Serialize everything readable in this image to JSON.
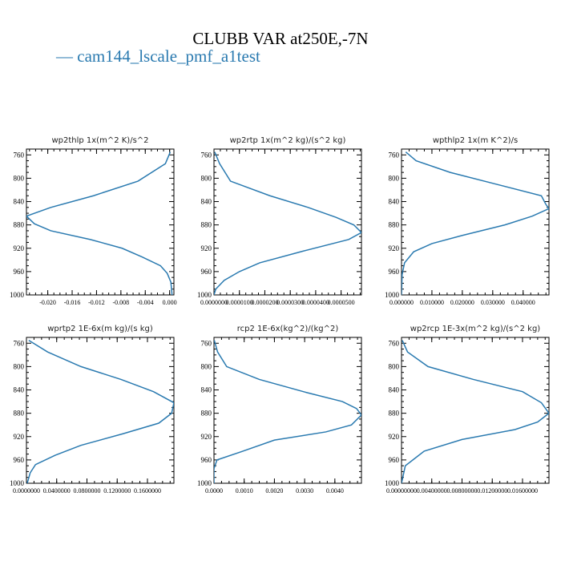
{
  "title": "CLUBB VAR at250E,-7N",
  "legend": "cam144_lscale_pmf_a1test",
  "legend_marker": "—",
  "colors": {
    "line": "#2a7ab0",
    "axis": "#000000"
  },
  "chart_data": [
    {
      "type": "line",
      "title": "wp2thlp   1x(m^2 K)/s^2",
      "xlim": [
        -0.0235,
        0.0007
      ],
      "ylim": [
        1000,
        750
      ],
      "y_ticks": [
        "760",
        "800",
        "840",
        "880",
        "920",
        "960",
        "1000"
      ],
      "x_ticks": [
        "-0.020",
        "-0.016",
        "-0.012",
        "-0.008",
        "-0.004",
        "0.000"
      ],
      "x_tick_values": [
        -0.02,
        -0.016,
        -0.012,
        -0.008,
        -0.004,
        0.0
      ],
      "series": [
        {
          "values": [
            {
              "x": 0.0001,
              "y": 755
            },
            {
              "x": -0.0007,
              "y": 775
            },
            {
              "x": -0.0052,
              "y": 805
            },
            {
              "x": -0.0125,
              "y": 830
            },
            {
              "x": -0.0195,
              "y": 850
            },
            {
              "x": -0.0235,
              "y": 865
            },
            {
              "x": -0.0222,
              "y": 878
            },
            {
              "x": -0.0195,
              "y": 890
            },
            {
              "x": -0.013,
              "y": 905
            },
            {
              "x": -0.0078,
              "y": 920
            },
            {
              "x": -0.0045,
              "y": 935
            },
            {
              "x": -0.0015,
              "y": 950
            },
            {
              "x": -0.0004,
              "y": 963
            },
            {
              "x": 0.0002,
              "y": 978
            },
            {
              "x": 0.0004,
              "y": 1000
            }
          ]
        }
      ]
    },
    {
      "type": "line",
      "title": "wp2rtp   1x(m^2 kg)/(s^2 kg)",
      "xlim": [
        0.0,
        5.8e-05
      ],
      "ylim": [
        1000,
        750
      ],
      "y_ticks": [
        "760",
        "800",
        "840",
        "880",
        "920",
        "960",
        "1000"
      ],
      "x_ticks": [
        "0.0000000",
        "0.0000100",
        "0.0000200",
        "0.0000300",
        "0.0000400",
        "0.0000500"
      ],
      "x_tick_values": [
        0.0,
        1e-05,
        2e-05,
        3e-05,
        4e-05,
        5e-05
      ],
      "series": [
        {
          "values": [
            {
              "x": 3e-07,
              "y": 755
            },
            {
              "x": 2.2e-06,
              "y": 775
            },
            {
              "x": 6.5e-06,
              "y": 805
            },
            {
              "x": 2.2e-05,
              "y": 830
            },
            {
              "x": 3.7e-05,
              "y": 850
            },
            {
              "x": 4.8e-05,
              "y": 867
            },
            {
              "x": 5.5e-05,
              "y": 880
            },
            {
              "x": 5.8e-05,
              "y": 893
            },
            {
              "x": 5.3e-05,
              "y": 905
            },
            {
              "x": 3.5e-05,
              "y": 925
            },
            {
              "x": 1.8e-05,
              "y": 945
            },
            {
              "x": 1e-05,
              "y": 960
            },
            {
              "x": 4e-06,
              "y": 975
            },
            {
              "x": 7e-07,
              "y": 990
            },
            {
              "x": 0.0,
              "y": 1000
            }
          ]
        }
      ]
    },
    {
      "type": "line",
      "title": "wpthlp2   1x(m K^2)/s",
      "xlim": [
        0.0,
        0.0485
      ],
      "ylim": [
        1000,
        750
      ],
      "y_ticks": [
        "760",
        "800",
        "840",
        "880",
        "920",
        "960",
        "1000"
      ],
      "x_ticks": [
        "0.000000",
        "0.010000",
        "0.020000",
        "0.030000",
        "0.040000"
      ],
      "x_tick_values": [
        0.0,
        0.01,
        0.02,
        0.03,
        0.04
      ],
      "series": [
        {
          "values": [
            {
              "x": 0.0014,
              "y": 755
            },
            {
              "x": 0.0048,
              "y": 770
            },
            {
              "x": 0.016,
              "y": 790
            },
            {
              "x": 0.031,
              "y": 810
            },
            {
              "x": 0.046,
              "y": 830
            },
            {
              "x": 0.0475,
              "y": 845
            },
            {
              "x": 0.0485,
              "y": 852
            },
            {
              "x": 0.043,
              "y": 865
            },
            {
              "x": 0.034,
              "y": 880
            },
            {
              "x": 0.02,
              "y": 898
            },
            {
              "x": 0.01,
              "y": 912
            },
            {
              "x": 0.004,
              "y": 926
            },
            {
              "x": 0.001,
              "y": 945
            },
            {
              "x": 0.0002,
              "y": 965
            },
            {
              "x": 0.0,
              "y": 1000
            }
          ]
        }
      ]
    },
    {
      "type": "line",
      "title": "wprtp2   1E-6x(m kg)/(s kg)",
      "xlim": [
        0.0,
        1.95e-07
      ],
      "ylim": [
        1000,
        750
      ],
      "y_ticks": [
        "760",
        "800",
        "840",
        "880",
        "920",
        "960",
        "1000"
      ],
      "x_ticks": [
        "0.0000000",
        "0.0400000",
        "0.0800000",
        "0.1200000",
        "0.1600000"
      ],
      "x_tick_values": [
        0.0,
        4e-08,
        8e-08,
        1.2e-07,
        1.6e-07
      ],
      "series": [
        {
          "values": [
            {
              "x": 3e-09,
              "y": 755
            },
            {
              "x": 2.8e-08,
              "y": 775
            },
            {
              "x": 7.2e-08,
              "y": 800
            },
            {
              "x": 1.25e-07,
              "y": 822
            },
            {
              "x": 1.68e-07,
              "y": 843
            },
            {
              "x": 1.95e-07,
              "y": 862
            },
            {
              "x": 1.92e-07,
              "y": 880
            },
            {
              "x": 1.75e-07,
              "y": 897
            },
            {
              "x": 1.28e-07,
              "y": 915
            },
            {
              "x": 7.2e-08,
              "y": 935
            },
            {
              "x": 3.8e-08,
              "y": 952
            },
            {
              "x": 1.2e-08,
              "y": 968
            },
            {
              "x": 5e-09,
              "y": 982
            },
            {
              "x": 1e-09,
              "y": 1000
            }
          ]
        }
      ]
    },
    {
      "type": "line",
      "title": "rcp2   1E-6x(kg^2)/(kg^2)",
      "xlim": [
        0.0,
        4.88e-09
      ],
      "ylim": [
        1000,
        750
      ],
      "y_ticks": [
        "760",
        "800",
        "840",
        "880",
        "920",
        "960",
        "1000"
      ],
      "x_ticks": [
        "0.0000",
        "0.0010",
        "0.0020",
        "0.0030",
        "0.0040"
      ],
      "x_tick_values": [
        0.0,
        1e-09,
        2e-09,
        3e-09,
        4e-09
      ],
      "series": [
        {
          "values": [
            {
              "x": 1e-11,
              "y": 755
            },
            {
              "x": 1.2e-10,
              "y": 775
            },
            {
              "x": 4.2e-10,
              "y": 800
            },
            {
              "x": 1.5e-09,
              "y": 822
            },
            {
              "x": 3.1e-09,
              "y": 845
            },
            {
              "x": 4.25e-09,
              "y": 860
            },
            {
              "x": 4.72e-09,
              "y": 872
            },
            {
              "x": 4.88e-09,
              "y": 883
            },
            {
              "x": 4.55e-09,
              "y": 900
            },
            {
              "x": 3.7e-09,
              "y": 912
            },
            {
              "x": 2e-09,
              "y": 926
            },
            {
              "x": 9e-10,
              "y": 946
            },
            {
              "x": 1e-10,
              "y": 960
            },
            {
              "x": 0.0,
              "y": 975
            },
            {
              "x": 0.0,
              "y": 1000
            }
          ]
        }
      ]
    },
    {
      "type": "line",
      "title": "wp2rcp   1E-3x(m^2 kg)/(s^2 kg)",
      "xlim": [
        0.0,
        1.95e-08
      ],
      "ylim": [
        1000,
        750
      ],
      "y_ticks": [
        "760",
        "800",
        "840",
        "880",
        "920",
        "960",
        "1000"
      ],
      "x_ticks": [
        "0.00000000",
        "0.00400000",
        "0.00800000",
        "0.01200000",
        "0.01600000"
      ],
      "x_tick_values": [
        0.0,
        4e-09,
        8e-09,
        1.2e-08,
        1.6e-08
      ],
      "series": [
        {
          "values": [
            {
              "x": 1e-10,
              "y": 755
            },
            {
              "x": 8e-10,
              "y": 775
            },
            {
              "x": 3.5e-09,
              "y": 800
            },
            {
              "x": 9.5e-09,
              "y": 822
            },
            {
              "x": 1.6e-08,
              "y": 843
            },
            {
              "x": 1.85e-08,
              "y": 862
            },
            {
              "x": 1.95e-08,
              "y": 880
            },
            {
              "x": 1.8e-08,
              "y": 895
            },
            {
              "x": 1.5e-08,
              "y": 908
            },
            {
              "x": 8e-09,
              "y": 925
            },
            {
              "x": 3e-09,
              "y": 945
            },
            {
              "x": 1.5e-09,
              "y": 960
            },
            {
              "x": 5e-10,
              "y": 970
            },
            {
              "x": 0.0,
              "y": 1000
            }
          ]
        }
      ]
    }
  ]
}
